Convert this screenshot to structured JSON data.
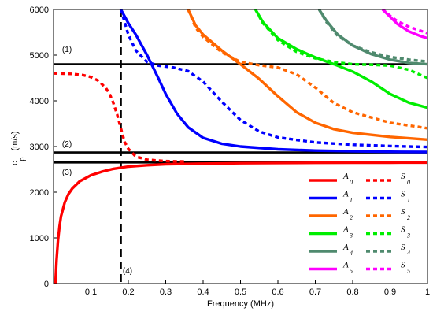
{
  "chart_data": {
    "type": "line",
    "title": "",
    "xlabel": "Frequency (MHz)",
    "ylabel_main": "c",
    "ylabel_sub": "p",
    "ylabel_unit": "(m/s)",
    "xlim": [
      0,
      1
    ],
    "ylim": [
      0,
      6000
    ],
    "x_ticks": [
      "0.1",
      "0.2",
      "0.3",
      "0.4",
      "0.5",
      "0.6",
      "0.7",
      "0.8",
      "0.9",
      "1"
    ],
    "x_tick_values": [
      0.1,
      0.2,
      0.3,
      0.4,
      0.5,
      0.6,
      0.7,
      0.8,
      0.9,
      1.0
    ],
    "y_ticks": [
      "0",
      "1000",
      "2000",
      "3000",
      "4000",
      "5000",
      "6000"
    ],
    "y_tick_values": [
      0,
      1000,
      2000,
      3000,
      4000,
      5000,
      6000
    ],
    "grid": false,
    "legend_position": "bottom-right",
    "annotations": [
      {
        "label": "(1)",
        "x": 0.023,
        "y": 5070
      },
      {
        "label": "(2)",
        "x": 0.023,
        "y": 3000
      },
      {
        "label": "(3)",
        "x": 0.023,
        "y": 2380
      },
      {
        "label": "(4)",
        "x": 0.185,
        "y": 220
      }
    ],
    "reference_lines": [
      {
        "orientation": "horizontal",
        "value": 4800,
        "color": "#000000",
        "style": "solid"
      },
      {
        "orientation": "horizontal",
        "value": 2870,
        "color": "#000000",
        "style": "solid"
      },
      {
        "orientation": "horizontal",
        "value": 2650,
        "color": "#000000",
        "style": "solid"
      },
      {
        "orientation": "vertical",
        "value": 0.18,
        "color": "#000000",
        "style": "dashed"
      }
    ],
    "series": [
      {
        "name": "A",
        "sub": "0",
        "color": "#ff0000",
        "dash": false,
        "x": [
          0.005,
          0.008,
          0.012,
          0.016,
          0.02,
          0.03,
          0.04,
          0.05,
          0.07,
          0.1,
          0.13,
          0.16,
          0.2,
          0.25,
          0.3,
          0.4,
          0.5,
          0.6,
          0.7,
          0.8,
          0.9,
          1.0
        ],
        "y": [
          0,
          500,
          950,
          1250,
          1470,
          1780,
          1960,
          2080,
          2240,
          2370,
          2450,
          2510,
          2560,
          2590,
          2610,
          2625,
          2635,
          2640,
          2643,
          2645,
          2647,
          2648
        ]
      },
      {
        "name": "S",
        "sub": "0",
        "color": "#ff0000",
        "dash": true,
        "x": [
          0.0,
          0.05,
          0.08,
          0.1,
          0.12,
          0.14,
          0.15,
          0.16,
          0.17,
          0.18,
          0.19,
          0.2,
          0.22,
          0.25,
          0.3,
          0.35
        ],
        "y": [
          4600,
          4590,
          4560,
          4520,
          4440,
          4280,
          4150,
          3950,
          3700,
          3400,
          3100,
          2950,
          2780,
          2710,
          2680,
          2670
        ]
      },
      {
        "name": "A",
        "sub": "1",
        "color": "#0000ff",
        "dash": false,
        "x": [
          0.18,
          0.19,
          0.2,
          0.22,
          0.25,
          0.28,
          0.3,
          0.33,
          0.36,
          0.4,
          0.45,
          0.5,
          0.6,
          0.7,
          0.8,
          0.9,
          1.0
        ],
        "y": [
          6000,
          5850,
          5700,
          5450,
          5000,
          4500,
          4150,
          3720,
          3420,
          3190,
          3060,
          3000,
          2940,
          2910,
          2895,
          2885,
          2880
        ]
      },
      {
        "name": "S",
        "sub": "1",
        "color": "#0000ff",
        "dash": true,
        "x": [
          0.18,
          0.2,
          0.22,
          0.25,
          0.28,
          0.32,
          0.36,
          0.4,
          0.45,
          0.5,
          0.55,
          0.6,
          0.7,
          0.8,
          0.9,
          1.0
        ],
        "y": [
          6000,
          5450,
          5100,
          4850,
          4770,
          4730,
          4650,
          4420,
          3980,
          3580,
          3330,
          3200,
          3090,
          3040,
          3010,
          2990
        ]
      },
      {
        "name": "A",
        "sub": "2",
        "color": "#ff6600",
        "dash": false,
        "x": [
          0.36,
          0.38,
          0.4,
          0.45,
          0.5,
          0.55,
          0.6,
          0.65,
          0.7,
          0.75,
          0.8,
          0.9,
          1.0
        ],
        "y": [
          6000,
          5650,
          5450,
          5100,
          4800,
          4480,
          4100,
          3750,
          3520,
          3380,
          3300,
          3210,
          3150
        ]
      },
      {
        "name": "S",
        "sub": "2",
        "color": "#ff6600",
        "dash": true,
        "x": [
          0.36,
          0.38,
          0.4,
          0.45,
          0.5,
          0.55,
          0.6,
          0.65,
          0.7,
          0.75,
          0.8,
          0.9,
          1.0
        ],
        "y": [
          6000,
          5600,
          5400,
          5060,
          4850,
          4780,
          4730,
          4580,
          4290,
          3950,
          3750,
          3520,
          3400
        ]
      },
      {
        "name": "A",
        "sub": "3",
        "color": "#00ee00",
        "dash": false,
        "x": [
          0.54,
          0.56,
          0.6,
          0.65,
          0.7,
          0.75,
          0.8,
          0.85,
          0.9,
          0.95,
          1.0
        ],
        "y": [
          6000,
          5720,
          5370,
          5130,
          4950,
          4800,
          4640,
          4420,
          4150,
          3960,
          3850
        ]
      },
      {
        "name": "S",
        "sub": "3",
        "color": "#00ee00",
        "dash": true,
        "x": [
          0.54,
          0.56,
          0.6,
          0.65,
          0.7,
          0.75,
          0.8,
          0.85,
          0.9,
          0.95,
          1.0
        ],
        "y": [
          6000,
          5700,
          5330,
          5070,
          4930,
          4850,
          4800,
          4790,
          4770,
          4680,
          4500
        ]
      },
      {
        "name": "A",
        "sub": "4",
        "color": "#4f8a6e",
        "dash": false,
        "x": [
          0.71,
          0.73,
          0.76,
          0.8,
          0.85,
          0.9,
          0.95,
          1.0
        ],
        "y": [
          6000,
          5750,
          5450,
          5210,
          5020,
          4900,
          4830,
          4800
        ]
      },
      {
        "name": "S",
        "sub": "4",
        "color": "#4f8a6e",
        "dash": true,
        "x": [
          0.71,
          0.73,
          0.76,
          0.8,
          0.85,
          0.9,
          0.95,
          1.0
        ],
        "y": [
          6000,
          5720,
          5420,
          5210,
          5060,
          4960,
          4900,
          4860
        ]
      },
      {
        "name": "A",
        "sub": "5",
        "color": "#ff00ff",
        "dash": false,
        "x": [
          0.88,
          0.9,
          0.92,
          0.95,
          0.98,
          1.0
        ],
        "y": [
          6000,
          5840,
          5680,
          5520,
          5420,
          5370
        ]
      },
      {
        "name": "S",
        "sub": "5",
        "color": "#ff00ff",
        "dash": true,
        "x": [
          0.88,
          0.9,
          0.92,
          0.95,
          0.98,
          1.0
        ],
        "y": [
          6000,
          5860,
          5740,
          5620,
          5540,
          5480
        ]
      }
    ]
  }
}
